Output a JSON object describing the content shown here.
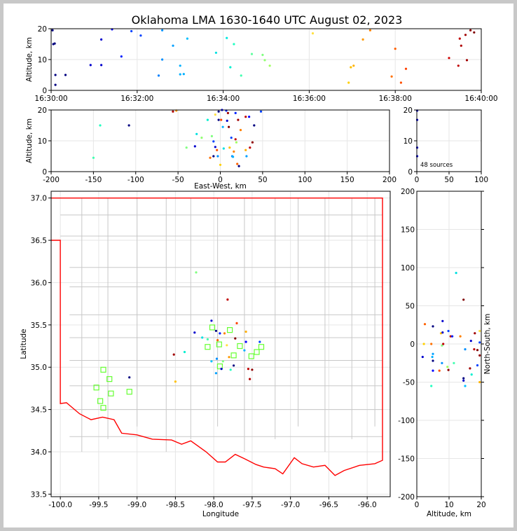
{
  "title": "Oklahoma LMA 1630-1640 UTC August 02, 2023",
  "source_count_label": "48 sources",
  "chart_data": [
    {
      "panel": "altitude-time",
      "type": "scatter",
      "xlabel": "",
      "ylabel": "Altitude, km",
      "xlim": [
        "16:30:00",
        "16:40:00"
      ],
      "ylim": [
        0,
        20
      ],
      "xticks": [
        "16:30:00",
        "16:32:00",
        "16:34:00",
        "16:36:00",
        "16:38:00",
        "16:40:00"
      ],
      "yticks": [
        0,
        10,
        20
      ],
      "grid": true,
      "points": [
        {
          "t": "16:30:02",
          "y": 19.5,
          "c": "#000080"
        },
        {
          "t": "16:30:03",
          "y": 15.0,
          "c": "#000080"
        },
        {
          "t": "16:30:05",
          "y": 15.2,
          "c": "#000080"
        },
        {
          "t": "16:30:06",
          "y": 5.0,
          "c": "#000080"
        },
        {
          "t": "16:30:06",
          "y": 1.8,
          "c": "#000080"
        },
        {
          "t": "16:30:20",
          "y": 5.0,
          "c": "#000080"
        },
        {
          "t": "16:30:55",
          "y": 8.2,
          "c": "#0000cd"
        },
        {
          "t": "16:31:10",
          "y": 16.5,
          "c": "#0000cd"
        },
        {
          "t": "16:31:10",
          "y": 8.2,
          "c": "#0000cd"
        },
        {
          "t": "16:31:25",
          "y": 19.8,
          "c": "#0000ff"
        },
        {
          "t": "16:31:38",
          "y": 11.0,
          "c": "#0020ff"
        },
        {
          "t": "16:31:52",
          "y": 19.2,
          "c": "#0040ff"
        },
        {
          "t": "16:32:05",
          "y": 17.8,
          "c": "#0040ff"
        },
        {
          "t": "16:32:30",
          "y": 4.8,
          "c": "#0080ff"
        },
        {
          "t": "16:32:35",
          "y": 19.5,
          "c": "#0090ff"
        },
        {
          "t": "16:32:35",
          "y": 10.0,
          "c": "#0090ff"
        },
        {
          "t": "16:32:50",
          "y": 14.5,
          "c": "#00a0ff"
        },
        {
          "t": "16:33:00",
          "y": 8.0,
          "c": "#00b0ff"
        },
        {
          "t": "16:33:00",
          "y": 5.2,
          "c": "#00b0ff"
        },
        {
          "t": "16:33:05",
          "y": 5.3,
          "c": "#00b0ff"
        },
        {
          "t": "16:33:10",
          "y": 16.8,
          "c": "#00c0ff"
        },
        {
          "t": "16:33:50",
          "y": 12.2,
          "c": "#00e0e0"
        },
        {
          "t": "16:34:05",
          "y": 17.0,
          "c": "#00e8e0"
        },
        {
          "t": "16:34:10",
          "y": 7.5,
          "c": "#00f0d0"
        },
        {
          "t": "16:34:15",
          "y": 15.0,
          "c": "#20ffc0"
        },
        {
          "t": "16:34:25",
          "y": 4.8,
          "c": "#40ffb0"
        },
        {
          "t": "16:34:40",
          "y": 11.8,
          "c": "#60ffa0"
        },
        {
          "t": "16:34:55",
          "y": 11.5,
          "c": "#80ff80"
        },
        {
          "t": "16:34:58",
          "y": 9.8,
          "c": "#90ff70"
        },
        {
          "t": "16:35:05",
          "y": 8.0,
          "c": "#a0ff60"
        },
        {
          "t": "16:36:05",
          "y": 18.5,
          "c": "#ffe040"
        },
        {
          "t": "16:36:55",
          "y": 2.5,
          "c": "#ffd000"
        },
        {
          "t": "16:36:58",
          "y": 7.5,
          "c": "#ffc000"
        },
        {
          "t": "16:37:02",
          "y": 8.0,
          "c": "#ffb000"
        },
        {
          "t": "16:37:15",
          "y": 16.5,
          "c": "#ff9a00"
        },
        {
          "t": "16:37:25",
          "y": 19.5,
          "c": "#ff8000"
        },
        {
          "t": "16:37:55",
          "y": 4.5,
          "c": "#ff7000"
        },
        {
          "t": "16:38:00",
          "y": 13.5,
          "c": "#ff6000"
        },
        {
          "t": "16:38:08",
          "y": 2.5,
          "c": "#ff5000"
        },
        {
          "t": "16:38:15",
          "y": 7.0,
          "c": "#ff4000"
        },
        {
          "t": "16:39:15",
          "y": 10.5,
          "c": "#d00000"
        },
        {
          "t": "16:39:28",
          "y": 8.0,
          "c": "#c00000"
        },
        {
          "t": "16:39:30",
          "y": 16.8,
          "c": "#c00000"
        },
        {
          "t": "16:39:32",
          "y": 14.5,
          "c": "#b00000"
        },
        {
          "t": "16:39:38",
          "y": 18.0,
          "c": "#a00000"
        },
        {
          "t": "16:39:40",
          "y": 9.8,
          "c": "#a00000"
        },
        {
          "t": "16:39:45",
          "y": 19.5,
          "c": "#900000"
        },
        {
          "t": "16:39:50",
          "y": 18.8,
          "c": "#800000"
        }
      ]
    },
    {
      "panel": "altitude-eastwest",
      "type": "scatter",
      "xlabel": "East-West, km",
      "ylabel": "Altitude, km",
      "xlim": [
        -200,
        200
      ],
      "ylim": [
        0,
        20
      ],
      "xticks": [
        -200,
        -150,
        -100,
        -50,
        0,
        50,
        100,
        150,
        200
      ],
      "yticks": [
        0,
        10,
        20
      ],
      "grid": true,
      "points": [
        {
          "x": -150,
          "y": 4.5,
          "c": "#40ffb0"
        },
        {
          "x": -142,
          "y": 15.0,
          "c": "#20ffc0"
        },
        {
          "x": -108,
          "y": 15.0,
          "c": "#000080"
        },
        {
          "x": -56,
          "y": 19.5,
          "c": "#b00000"
        },
        {
          "x": -52,
          "y": 19.8,
          "c": "#ff9a00"
        },
        {
          "x": -40,
          "y": 7.8,
          "c": "#80ff80"
        },
        {
          "x": -30,
          "y": 8.2,
          "c": "#0000cd"
        },
        {
          "x": -28,
          "y": 12.2,
          "c": "#00e0e0"
        },
        {
          "x": -22,
          "y": 11.0,
          "c": "#90ff70"
        },
        {
          "x": -15,
          "y": 16.8,
          "c": "#00f0d0"
        },
        {
          "x": -12,
          "y": 4.5,
          "c": "#ff7000"
        },
        {
          "x": -10,
          "y": 11.5,
          "c": "#80ff80"
        },
        {
          "x": -8,
          "y": 5.0,
          "c": "#000080"
        },
        {
          "x": -8,
          "y": 9.8,
          "c": "#0040ff"
        },
        {
          "x": -6,
          "y": 8.0,
          "c": "#0000cd"
        },
        {
          "x": -6,
          "y": 18.5,
          "c": "#ffe040"
        },
        {
          "x": -4,
          "y": 7.0,
          "c": "#ff5000"
        },
        {
          "x": -3,
          "y": 5.0,
          "c": "#0090ff"
        },
        {
          "x": -2,
          "y": 19.5,
          "c": "#000080"
        },
        {
          "x": -2,
          "y": 16.8,
          "c": "#000080"
        },
        {
          "x": 0,
          "y": 2.2,
          "c": "#ffd000"
        },
        {
          "x": 1,
          "y": 16.8,
          "c": "#ff4000"
        },
        {
          "x": 2,
          "y": 20.0,
          "c": "#0000ff"
        },
        {
          "x": 3,
          "y": 14.5,
          "c": "#00b0ff"
        },
        {
          "x": 4,
          "y": 7.5,
          "c": "#00e0e0"
        },
        {
          "x": 7,
          "y": 19.8,
          "c": "#0020ff"
        },
        {
          "x": 8,
          "y": 16.5,
          "c": "#0000cd"
        },
        {
          "x": 9,
          "y": 19.0,
          "c": "#a00000"
        },
        {
          "x": 10,
          "y": 14.5,
          "c": "#800000"
        },
        {
          "x": 11,
          "y": 7.8,
          "c": "#ffc000"
        },
        {
          "x": 13,
          "y": 11.0,
          "c": "#0040ff"
        },
        {
          "x": 14,
          "y": 5.0,
          "c": "#0090ff"
        },
        {
          "x": 15,
          "y": 4.8,
          "c": "#00b0ff"
        },
        {
          "x": 16,
          "y": 6.5,
          "c": "#ff8000"
        },
        {
          "x": 18,
          "y": 19.0,
          "c": "#0020ff"
        },
        {
          "x": 18,
          "y": 10.5,
          "c": "#c00000"
        },
        {
          "x": 19,
          "y": 9.5,
          "c": "#a0ff60"
        },
        {
          "x": 20,
          "y": 2.5,
          "c": "#ff6000"
        },
        {
          "x": 21,
          "y": 16.8,
          "c": "#a00000"
        },
        {
          "x": 22,
          "y": 1.8,
          "c": "#000080"
        },
        {
          "x": 24,
          "y": 13.5,
          "c": "#ff8000"
        },
        {
          "x": 30,
          "y": 7.0,
          "c": "#ffb000"
        },
        {
          "x": 30,
          "y": 17.8,
          "c": "#c00000"
        },
        {
          "x": 31,
          "y": 5.0,
          "c": "#00a0ff"
        },
        {
          "x": 34,
          "y": 17.8,
          "c": "#0000ff"
        },
        {
          "x": 35,
          "y": 7.8,
          "c": "#c00000"
        },
        {
          "x": 38,
          "y": 9.5,
          "c": "#900000"
        },
        {
          "x": 40,
          "y": 15.0,
          "c": "#000080"
        },
        {
          "x": 48,
          "y": 19.5,
          "c": "#0040ff"
        }
      ]
    },
    {
      "panel": "altitude-histogram",
      "type": "scatter",
      "xlabel": "",
      "ylabel": "",
      "xlim": [
        0,
        100
      ],
      "ylim": [
        0,
        20
      ],
      "xticks": [
        0,
        50,
        100
      ],
      "yticks": [
        0,
        10,
        20
      ],
      "grid": true,
      "points": [
        {
          "x": 0.5,
          "y": 19.8,
          "c": "#0000cd"
        },
        {
          "x": 0.5,
          "y": 16.8,
          "c": "#0000cd"
        },
        {
          "x": 0.5,
          "y": 7.8,
          "c": "#0000cd"
        },
        {
          "x": 0.5,
          "y": 5.0,
          "c": "#0000cd"
        }
      ]
    },
    {
      "panel": "plan-view",
      "type": "scatter",
      "xlabel": "Longitude",
      "ylabel": "Latitude",
      "xlim": [
        -100.12,
        -95.7
      ],
      "ylim": [
        33.47,
        37.08
      ],
      "xticks": [
        -100.0,
        -99.5,
        -99.0,
        -98.5,
        -98.0,
        -97.5,
        -97.0,
        -96.5,
        -96.0
      ],
      "yticks": [
        33.5,
        34.0,
        34.5,
        35.0,
        35.5,
        36.0,
        36.5,
        37.0
      ],
      "grid": true,
      "stations": [
        [
          -99.44,
          34.97
        ],
        [
          -99.36,
          34.86
        ],
        [
          -99.53,
          34.76
        ],
        [
          -99.34,
          34.69
        ],
        [
          -99.48,
          34.6
        ],
        [
          -99.44,
          34.52
        ],
        [
          -99.1,
          34.71
        ],
        [
          -98.02,
          35.47
        ],
        [
          -98.08,
          35.24
        ],
        [
          -97.93,
          35.27
        ],
        [
          -97.92,
          35.01
        ],
        [
          -97.79,
          35.44
        ],
        [
          -97.74,
          35.14
        ],
        [
          -97.66,
          35.25
        ],
        [
          -97.51,
          35.13
        ],
        [
          -97.44,
          35.18
        ],
        [
          -97.38,
          35.24
        ]
      ],
      "points": [
        {
          "lon": -98.23,
          "lat": 36.12,
          "c": "#80ff80"
        },
        {
          "lon": -97.82,
          "lat": 35.8,
          "c": "#c00000"
        },
        {
          "lon": -98.03,
          "lat": 35.55,
          "c": "#0000cd"
        },
        {
          "lon": -97.97,
          "lat": 35.43,
          "c": "#000080"
        },
        {
          "lon": -97.92,
          "lat": 35.4,
          "c": "#0020ff"
        },
        {
          "lon": -98.25,
          "lat": 35.41,
          "c": "#0000cd"
        },
        {
          "lon": -97.7,
          "lat": 35.52,
          "c": "#ff4000"
        },
        {
          "lon": -97.58,
          "lat": 35.42,
          "c": "#ffb000"
        },
        {
          "lon": -97.86,
          "lat": 35.4,
          "c": "#ff8000"
        },
        {
          "lon": -98.15,
          "lat": 35.35,
          "c": "#00e0e0"
        },
        {
          "lon": -98.08,
          "lat": 35.33,
          "c": "#40ffb0"
        },
        {
          "lon": -97.95,
          "lat": 35.32,
          "c": "#ff6000"
        },
        {
          "lon": -97.72,
          "lat": 35.34,
          "c": "#800000"
        },
        {
          "lon": -97.58,
          "lat": 35.3,
          "c": "#0000ff"
        },
        {
          "lon": -97.4,
          "lat": 35.3,
          "c": "#0040ff"
        },
        {
          "lon": -97.83,
          "lat": 35.26,
          "c": "#ffe040"
        },
        {
          "lon": -97.6,
          "lat": 35.2,
          "c": "#00b0ff"
        },
        {
          "lon": -98.38,
          "lat": 35.18,
          "c": "#00f0d0"
        },
        {
          "lon": -98.52,
          "lat": 35.15,
          "c": "#a00000"
        },
        {
          "lon": -97.96,
          "lat": 35.1,
          "c": "#0090ff"
        },
        {
          "lon": -97.88,
          "lat": 35.07,
          "c": "#80ff80"
        },
        {
          "lon": -97.8,
          "lat": 35.12,
          "c": "#ff9a00"
        },
        {
          "lon": -97.9,
          "lat": 34.98,
          "c": "#0000cd"
        },
        {
          "lon": -97.97,
          "lat": 34.93,
          "c": "#00a0ff"
        },
        {
          "lon": -97.74,
          "lat": 35.02,
          "c": "#000080"
        },
        {
          "lon": -97.78,
          "lat": 34.97,
          "c": "#20ffc0"
        },
        {
          "lon": -97.55,
          "lat": 34.98,
          "c": "#c00000"
        },
        {
          "lon": -97.5,
          "lat": 34.97,
          "c": "#900000"
        },
        {
          "lon": -97.53,
          "lat": 34.86,
          "c": "#b00000"
        },
        {
          "lon": -99.1,
          "lat": 34.88,
          "c": "#000080"
        },
        {
          "lon": -98.5,
          "lat": 34.83,
          "c": "#ffc000"
        },
        {
          "lon": -98.03,
          "lat": 35.07,
          "c": "#00c0ff"
        }
      ]
    },
    {
      "panel": "north-south-altitude",
      "type": "scatter",
      "xlabel": "Altitude, km",
      "ylabel": "North-South, km",
      "xlim": [
        0,
        20
      ],
      "ylim": [
        -200,
        200
      ],
      "xticks": [
        0,
        10,
        20
      ],
      "yticks": [
        -200,
        -150,
        -100,
        -50,
        0,
        50,
        100,
        150,
        200
      ],
      "grid": true,
      "points": [
        {
          "x": 12.2,
          "y": 93,
          "c": "#00e0e0"
        },
        {
          "x": 14.5,
          "y": 58,
          "c": "#800000"
        },
        {
          "x": 8.0,
          "y": 30,
          "c": "#0000cd"
        },
        {
          "x": 2.5,
          "y": 26,
          "c": "#ff6000"
        },
        {
          "x": 5.0,
          "y": 23,
          "c": "#000080"
        },
        {
          "x": 9.8,
          "y": 17,
          "c": "#0040ff"
        },
        {
          "x": 19.5,
          "y": 17,
          "c": "#ffe040"
        },
        {
          "x": 18.0,
          "y": 14,
          "c": "#a00000"
        },
        {
          "x": 7.5,
          "y": 14,
          "c": "#ffc000"
        },
        {
          "x": 8.0,
          "y": 15,
          "c": "#0000cd"
        },
        {
          "x": 10.5,
          "y": 10,
          "c": "#c00000"
        },
        {
          "x": 13.5,
          "y": 10,
          "c": "#ff8000"
        },
        {
          "x": 11.0,
          "y": 10,
          "c": "#0020ff"
        },
        {
          "x": 16.8,
          "y": 4,
          "c": "#0000cd"
        },
        {
          "x": 19.5,
          "y": 2,
          "c": "#0040ff"
        },
        {
          "x": 2.2,
          "y": 0,
          "c": "#ffd000"
        },
        {
          "x": 4.5,
          "y": 0,
          "c": "#ff7000"
        },
        {
          "x": 7.8,
          "y": -2,
          "c": "#80ff80"
        },
        {
          "x": 8.2,
          "y": 0,
          "c": "#c00000"
        },
        {
          "x": 15.0,
          "y": -7,
          "c": "#0090ff"
        },
        {
          "x": 17.8,
          "y": -7,
          "c": "#c00000"
        },
        {
          "x": 18.8,
          "y": -8,
          "c": "#800000"
        },
        {
          "x": 19.5,
          "y": -15,
          "c": "#900000"
        },
        {
          "x": 1.8,
          "y": -17,
          "c": "#0000cd"
        },
        {
          "x": 5.0,
          "y": -13,
          "c": "#00a0ff"
        },
        {
          "x": 4.8,
          "y": -17,
          "c": "#00b0ff"
        },
        {
          "x": 5.0,
          "y": -22,
          "c": "#000080"
        },
        {
          "x": 7.8,
          "y": -25,
          "c": "#0090ff"
        },
        {
          "x": 11.5,
          "y": -25,
          "c": "#40ffb0"
        },
        {
          "x": 9.5,
          "y": -30,
          "c": "#a0ff60"
        },
        {
          "x": 18.8,
          "y": -28,
          "c": "#0040ff"
        },
        {
          "x": 16.5,
          "y": -32,
          "c": "#a00000"
        },
        {
          "x": 7.0,
          "y": -35,
          "c": "#ff5000"
        },
        {
          "x": 5.0,
          "y": -35,
          "c": "#0000ff"
        },
        {
          "x": 9.8,
          "y": -34,
          "c": "#900000"
        },
        {
          "x": 17.0,
          "y": -40,
          "c": "#00f0d0"
        },
        {
          "x": 14.5,
          "y": -45,
          "c": "#000080"
        },
        {
          "x": 14.5,
          "y": -48,
          "c": "#0000cd"
        },
        {
          "x": 4.5,
          "y": -55,
          "c": "#20ffc0"
        },
        {
          "x": 15.0,
          "y": -55,
          "c": "#00c0ff"
        },
        {
          "x": 19.5,
          "y": -50,
          "c": "#ffb000"
        }
      ]
    }
  ]
}
